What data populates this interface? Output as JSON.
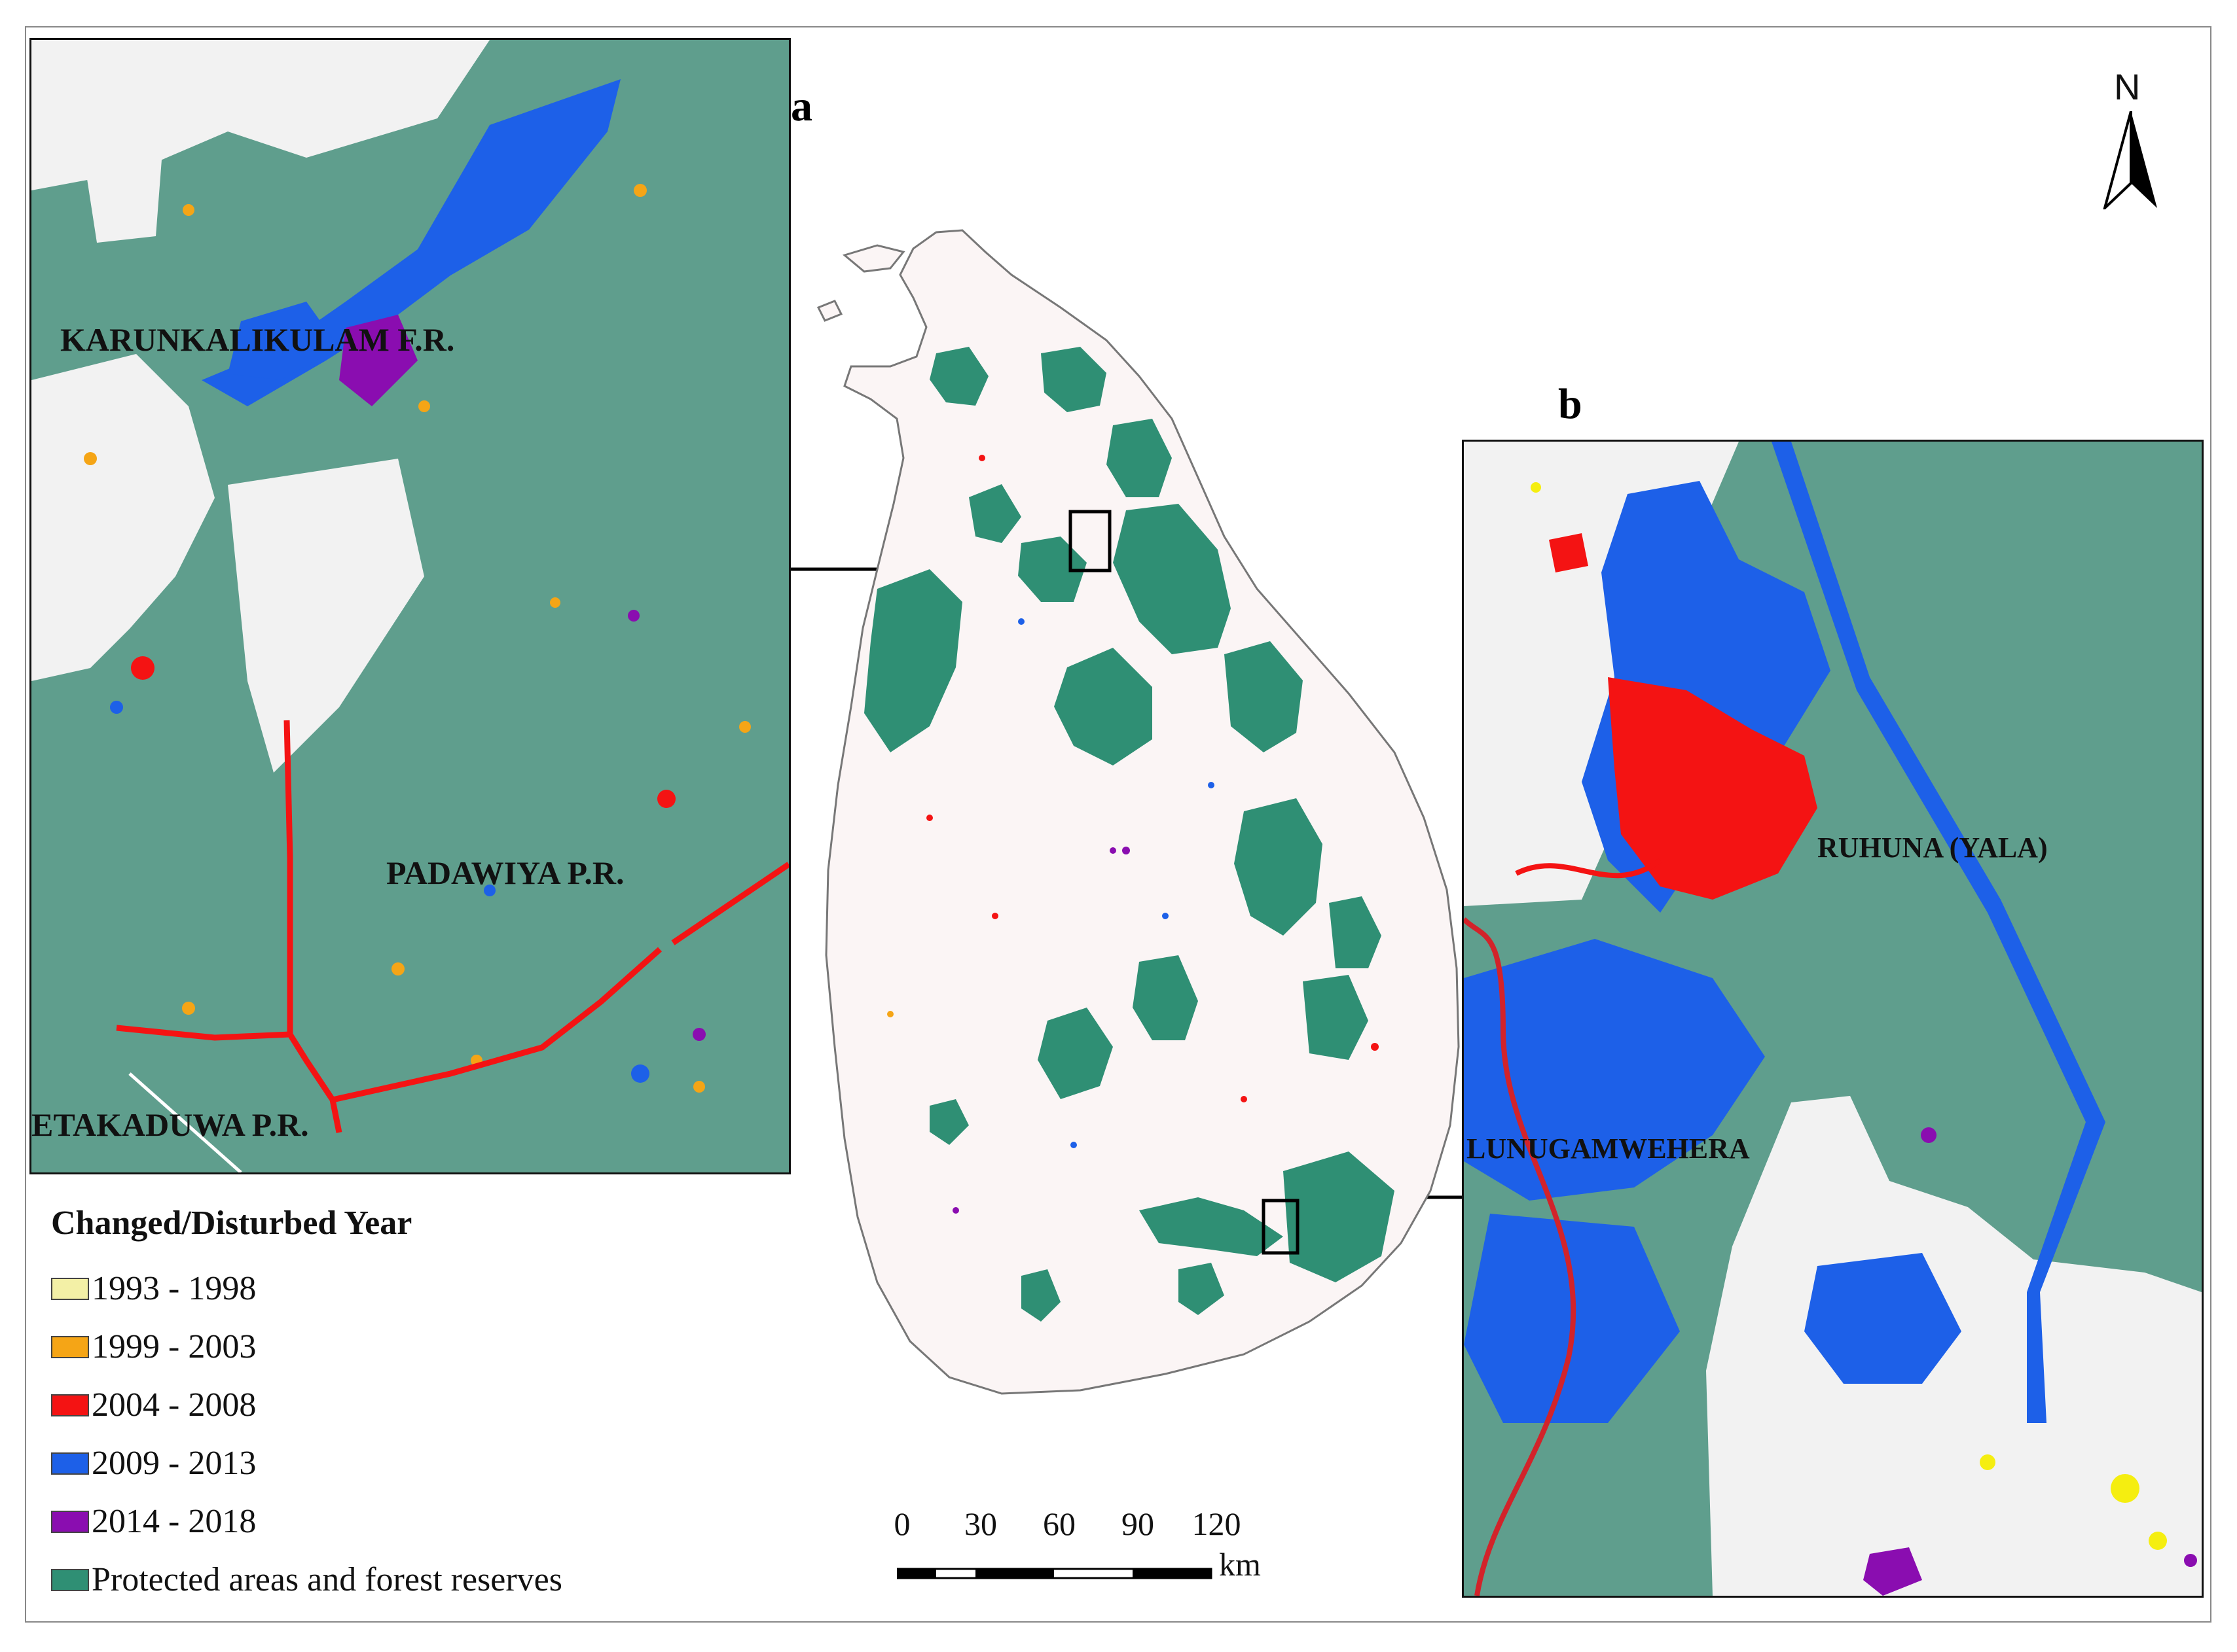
{
  "panels": {
    "a": {
      "letter": "a"
    },
    "b": {
      "letter": "b"
    }
  },
  "labels": {
    "karunkalikulam": "KARUNKALIKULAM F.R.",
    "padawiya": "PADAWIYA P.R.",
    "etakaduwa": "ETAKADUWA P.R.",
    "ruhuna": "RUHUNA (YALA)",
    "lunugamwehera": "LUNUGAMWEHERA"
  },
  "legend": {
    "title": "Changed/Disturbed Year",
    "items": [
      {
        "label": "1993 - 1998",
        "color": "#f3f0a6"
      },
      {
        "label": "1999 - 2003",
        "color": "#f5a516"
      },
      {
        "label": "2004 - 2008",
        "color": "#f41313"
      },
      {
        "label": "2009 - 2013",
        "color": "#1d60e8"
      },
      {
        "label": "2014 - 2018",
        "color": "#8a0db0"
      },
      {
        "label": "Protected areas and forest reserves",
        "color": "#2f8f74"
      }
    ]
  },
  "scale_bar": {
    "ticks": [
      "0",
      "30",
      "60",
      "90",
      "120"
    ],
    "unit": "km"
  },
  "north_arrow": {
    "letter": "N",
    "icon": "north-arrow-icon"
  },
  "colors": {
    "forest": "#5f9e8d",
    "forest_main": "#2f8f74",
    "land": "#f4f4f4",
    "island_bg": "#fbf7f7"
  }
}
